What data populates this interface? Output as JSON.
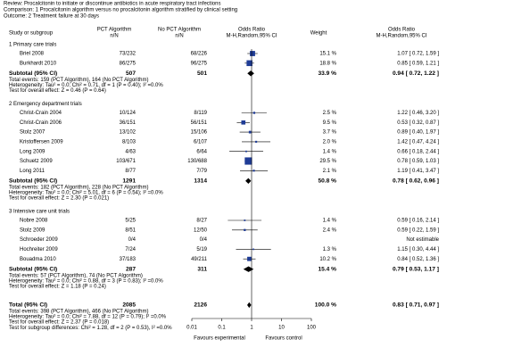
{
  "chart_data": {
    "type": "forest",
    "review": "Review:   Procalcitonin to initiate or discontinue antibiotics in acute respiratory tract infections",
    "comparison": "Comparison:   1 Procalcitonin algorithm versus no procalcitonin algorithm stratified by clinical setting",
    "outcome": "Outcome:   2 Treatment failure at 30 days",
    "headers": {
      "study": "Study or subgroup",
      "pct": [
        "PCT Algorithm",
        "n/N"
      ],
      "nopct": [
        "No PCT Algorithm",
        "n/N"
      ],
      "plot": [
        "Odds Ratio",
        "M-H,Random,95% CI"
      ],
      "weight": "Weight",
      "ci": [
        "Odds Ratio",
        "M-H,Random,95% CI"
      ]
    },
    "groups": [
      {
        "title": "1 Primary care trials",
        "studies": [
          {
            "name": "Briel 2008",
            "pct": "73/232",
            "nopct": "68/226",
            "weight": 15.1,
            "weight_label": "15.1 %",
            "or": 1.07,
            "lo": 0.72,
            "hi": 1.59,
            "ci_label": "1.07 [ 0.72, 1.59 ]"
          },
          {
            "name": "Burkhardt 2010",
            "pct": "86/275",
            "nopct": "96/275",
            "weight": 18.8,
            "weight_label": "18.8 %",
            "or": 0.85,
            "lo": 0.59,
            "hi": 1.21,
            "ci_label": "0.85 [ 0.59, 1.21 ]"
          }
        ],
        "subtotal": {
          "label": "Subtotal (95% CI)",
          "pct": 507,
          "nopct": 501,
          "weight": 33.9,
          "weight_label": "33.9 %",
          "or": 0.94,
          "lo": 0.72,
          "hi": 1.22,
          "ci_label": "0.94 [ 0.72, 1.22 ]"
        },
        "notes": [
          "Total events: 159 (PCT Algorithm), 164 (No PCT Algorithm)",
          "Heterogeneity: Tau² = 0.0; Chi² = 0.71, df = 1 (P = 0.40); I² =0.0%",
          "Test for overall effect: Z = 0.46 (P = 0.64)"
        ]
      },
      {
        "title": "2 Emergency department trials",
        "studies": [
          {
            "name": "Christ-Crain 2004",
            "pct": "10/124",
            "nopct": "8/119",
            "weight": 2.5,
            "weight_label": "2.5 %",
            "or": 1.22,
            "lo": 0.46,
            "hi": 3.2,
            "ci_label": "1.22 [ 0.46, 3.20 ]"
          },
          {
            "name": "Christ-Crain 2006",
            "pct": "36/151",
            "nopct": "56/151",
            "weight": 9.5,
            "weight_label": "9.5 %",
            "or": 0.53,
            "lo": 0.32,
            "hi": 0.87,
            "ci_label": "0.53 [ 0.32, 0.87 ]"
          },
          {
            "name": "Stolz 2007",
            "pct": "13/102",
            "nopct": "15/106",
            "weight": 3.7,
            "weight_label": "3.7 %",
            "or": 0.89,
            "lo": 0.4,
            "hi": 1.97,
            "ci_label": "0.89 [ 0.40, 1.97 ]"
          },
          {
            "name": "Kristoffersen 2009",
            "pct": "8/103",
            "nopct": "6/107",
            "weight": 2.0,
            "weight_label": "2.0 %",
            "or": 1.42,
            "lo": 0.47,
            "hi": 4.24,
            "ci_label": "1.42 [ 0.47, 4.24 ]"
          },
          {
            "name": "Long 2009",
            "pct": "4/63",
            "nopct": "6/64",
            "weight": 1.4,
            "weight_label": "1.4 %",
            "or": 0.66,
            "lo": 0.18,
            "hi": 2.44,
            "ci_label": "0.66 [ 0.18, 2.44 ]"
          },
          {
            "name": "Schuetz 2009",
            "pct": "103/671",
            "nopct": "130/688",
            "weight": 29.5,
            "weight_label": "29.5 %",
            "or": 0.78,
            "lo": 0.59,
            "hi": 1.03,
            "ci_label": "0.78 [ 0.59, 1.03 ]"
          },
          {
            "name": "Long 2011",
            "pct": "8/77",
            "nopct": "7/79",
            "weight": 2.1,
            "weight_label": "2.1 %",
            "or": 1.19,
            "lo": 0.41,
            "hi": 3.47,
            "ci_label": "1.19 [ 0.41, 3.47 ]"
          }
        ],
        "subtotal": {
          "label": "Subtotal (95% CI)",
          "pct": 1291,
          "nopct": 1314,
          "weight": 50.8,
          "weight_label": "50.8 %",
          "or": 0.78,
          "lo": 0.62,
          "hi": 0.96,
          "ci_label": "0.78 [ 0.62, 0.96 ]"
        },
        "notes": [
          "Total events: 182 (PCT Algorithm), 228 (No PCT Algorithm)",
          "Heterogeneity: Tau² = 0.0; Chi² = 5.01, df = 6 (P = 0.54); I² =0.0%",
          "Test for overall effect: Z = 2.30 (P = 0.021)"
        ]
      },
      {
        "title": "3 Intensive care unit trials",
        "studies": [
          {
            "name": "Nobre 2008",
            "pct": "5/25",
            "nopct": "8/27",
            "weight": 1.4,
            "weight_label": "1.4 %",
            "or": 0.59,
            "lo": 0.16,
            "hi": 2.14,
            "ci_label": "0.59 [ 0.16, 2.14 ]"
          },
          {
            "name": "Stolz 2009",
            "pct": "8/51",
            "nopct": "12/50",
            "weight": 2.4,
            "weight_label": "2.4 %",
            "or": 0.59,
            "lo": 0.22,
            "hi": 1.59,
            "ci_label": "0.59 [ 0.22, 1.59 ]"
          },
          {
            "name": "Schroeder 2009",
            "pct": "0/4",
            "nopct": "0/4",
            "ci_label": "Not estimable"
          },
          {
            "name": "Hochreiter 2009",
            "pct": "7/24",
            "nopct": "5/19",
            "weight": 1.3,
            "weight_label": "1.3 %",
            "or": 1.15,
            "lo": 0.3,
            "hi": 4.44,
            "ci_label": "1.15 [ 0.30, 4.44 ]"
          },
          {
            "name": "Bouadma 2010",
            "pct": "37/183",
            "nopct": "49/211",
            "weight": 10.2,
            "weight_label": "10.2 %",
            "or": 0.84,
            "lo": 0.52,
            "hi": 1.36,
            "ci_label": "0.84 [ 0.52, 1.36 ]"
          }
        ],
        "subtotal": {
          "label": "Subtotal (95% CI)",
          "pct": 287,
          "nopct": 311,
          "weight": 15.4,
          "weight_label": "15.4 %",
          "or": 0.79,
          "lo": 0.53,
          "hi": 1.17,
          "ci_label": "0.79 [ 0.53, 1.17 ]"
        },
        "notes": [
          "Total events: 57 (PCT Algorithm), 74 (No PCT Algorithm)",
          "Heterogeneity: Tau² = 0.0; Chi² = 0.88, df = 3 (P = 0.83); I² =0.0%",
          "Test for overall effect: Z = 1.18 (P = 0.24)"
        ]
      }
    ],
    "total": {
      "label": "Total (95% CI)",
      "pct": 2085,
      "nopct": 2126,
      "weight": 100.0,
      "weight_label": "100.0 %",
      "or": 0.83,
      "lo": 0.71,
      "hi": 0.97,
      "ci_label": "0.83 [ 0.71, 0.97 ]",
      "notes": [
        "Total events: 398 (PCT Algorithm), 466 (No PCT Algorithm)",
        "Heterogeneity: Tau² = 0.0; Chi² = 7.88, df = 12 (P = 0.79); I² =0.0%",
        "Test for overall effect: Z = 2.37 (P = 0.018)",
        "Test for subgroup differences: Chi² = 1.28, df = 2 (P = 0.53), I² =0.0%"
      ]
    },
    "xlim": [
      0.01,
      100
    ],
    "xticks": [
      0.01,
      0.1,
      1,
      10,
      100
    ],
    "log_x": true,
    "favours": [
      "Favours experimental",
      "Favours control"
    ],
    "marker_color": "#1f3c96"
  }
}
